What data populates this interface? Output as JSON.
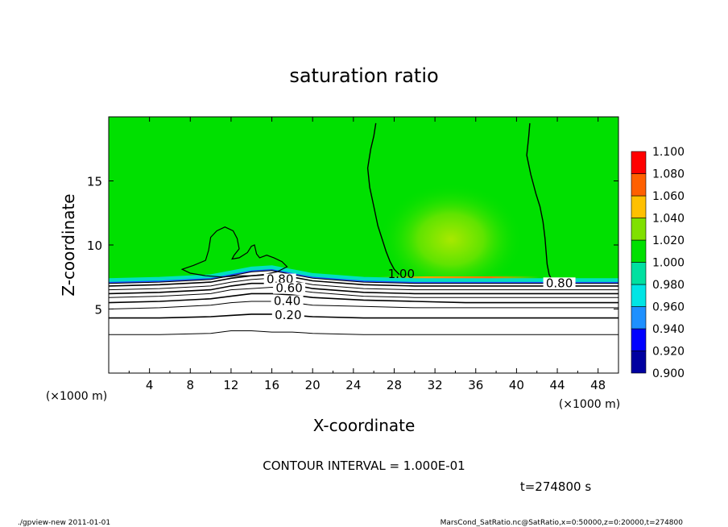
{
  "chart_data": {
    "type": "heatmap",
    "title": "saturation ratio",
    "xlabel": "X-coordinate",
    "ylabel": "Z-coordinate",
    "x_unit": "(×1000 m)",
    "y_unit": "(×1000 m)",
    "xlim": [
      0,
      50
    ],
    "ylim": [
      0,
      20
    ],
    "x_ticks": [
      "4",
      "8",
      "12",
      "16",
      "20",
      "24",
      "28",
      "32",
      "36",
      "40",
      "44",
      "48"
    ],
    "y_ticks": [
      "5",
      "10",
      "15"
    ],
    "contour_interval_text": "CONTOUR INTERVAL = 1.000E-01",
    "time_text": "t=274800 s",
    "colorbar": {
      "levels": [
        "0.900",
        "0.920",
        "0.940",
        "0.960",
        "0.980",
        "1.000",
        "1.020",
        "1.040",
        "1.060",
        "1.080",
        "1.100"
      ],
      "colors": [
        "#6a0dad",
        "#0000a0",
        "#0000ff",
        "#1e90ff",
        "#00e5e5",
        "#00e0a0",
        "#00e000",
        "#80e000",
        "#ffc000",
        "#ff6000",
        "#ff0000",
        "#ff8080"
      ]
    },
    "contour_labels": [
      {
        "text": "1.00",
        "x": 28.7,
        "z": 7.6
      },
      {
        "text": "0.80",
        "x": 44.2,
        "z": 6.9
      },
      {
        "text": "0.80",
        "x": 16.8,
        "z": 7.2
      },
      {
        "text": "0.60",
        "x": 17.7,
        "z": 6.5
      },
      {
        "text": "0.40",
        "x": 17.5,
        "z": 5.5
      },
      {
        "text": "0.20",
        "x": 17.6,
        "z": 4.4
      }
    ],
    "contour_lines_x": [
      0,
      5,
      10,
      12,
      14,
      16,
      18,
      20,
      25,
      30,
      35,
      40,
      45,
      50
    ],
    "contour_lines": [
      {
        "level": "0.10",
        "z": [
          3.0,
          3.0,
          3.1,
          3.3,
          3.3,
          3.2,
          3.2,
          3.1,
          3.0,
          3.0,
          3.0,
          3.0,
          3.0,
          3.0
        ]
      },
      {
        "level": "0.20",
        "z": [
          4.3,
          4.3,
          4.4,
          4.5,
          4.6,
          4.6,
          4.5,
          4.4,
          4.3,
          4.3,
          4.3,
          4.3,
          4.3,
          4.3
        ]
      },
      {
        "level": "0.30",
        "z": [
          5.0,
          5.1,
          5.3,
          5.5,
          5.6,
          5.6,
          5.5,
          5.3,
          5.2,
          5.1,
          5.1,
          5.1,
          5.1,
          5.1
        ]
      },
      {
        "level": "0.40",
        "z": [
          5.5,
          5.6,
          5.8,
          6.0,
          6.2,
          6.2,
          6.1,
          5.9,
          5.7,
          5.6,
          5.5,
          5.5,
          5.5,
          5.5
        ]
      },
      {
        "level": "0.50",
        "z": [
          5.9,
          6.0,
          6.2,
          6.5,
          6.6,
          6.7,
          6.5,
          6.3,
          6.0,
          5.9,
          5.9,
          5.9,
          5.9,
          5.9
        ]
      },
      {
        "level": "0.60",
        "z": [
          6.2,
          6.3,
          6.5,
          6.8,
          7.0,
          7.0,
          6.9,
          6.6,
          6.3,
          6.2,
          6.2,
          6.2,
          6.2,
          6.2
        ]
      },
      {
        "level": "0.70",
        "z": [
          6.5,
          6.6,
          6.8,
          7.1,
          7.3,
          7.4,
          7.2,
          6.9,
          6.6,
          6.5,
          6.5,
          6.5,
          6.5,
          6.5
        ]
      },
      {
        "level": "0.80",
        "z": [
          6.8,
          6.9,
          7.1,
          7.4,
          7.6,
          7.7,
          7.5,
          7.2,
          6.9,
          6.8,
          6.8,
          6.8,
          6.8,
          6.8
        ]
      },
      {
        "level": "0.90",
        "z": [
          7.0,
          7.1,
          7.3,
          7.6,
          7.9,
          8.0,
          7.7,
          7.4,
          7.1,
          7.0,
          7.0,
          7.0,
          7.0,
          7.0
        ]
      }
    ],
    "one_contours": [
      {
        "x": [
          26.2,
          26.0,
          25.7,
          25.4,
          25.6,
          26.0,
          26.4,
          26.8,
          27.2,
          27.6,
          28.0,
          28.5
        ],
        "z": [
          19.5,
          18.5,
          17.5,
          16.0,
          14.5,
          13.0,
          11.5,
          10.5,
          9.5,
          8.7,
          8.1,
          7.7
        ]
      },
      {
        "x": [
          41.3,
          41.2,
          41.0,
          41.4,
          41.9,
          42.3,
          42.6,
          42.8,
          42.9,
          43.0,
          43.2,
          43.5
        ],
        "z": [
          19.5,
          18.5,
          17.0,
          15.5,
          14.0,
          13.0,
          11.8,
          10.5,
          9.5,
          8.5,
          7.7,
          7.2
        ]
      }
    ],
    "cloud_outline": {
      "x": [
        7.2,
        8.3,
        9.5,
        9.8,
        10.0,
        10.6,
        11.4,
        12.2,
        12.6,
        12.8,
        12.3,
        12.1,
        12.8,
        13.6,
        14.0,
        14.3,
        14.5,
        14.8,
        15.5,
        16.2,
        17.0,
        17.5,
        16.5,
        15.2,
        14.0,
        12.8,
        11.2,
        9.5,
        8.0,
        7.2
      ],
      "z": [
        8.1,
        8.4,
        8.8,
        9.6,
        10.6,
        11.1,
        11.4,
        11.1,
        10.5,
        9.7,
        9.2,
        8.9,
        9.0,
        9.4,
        9.9,
        10.0,
        9.3,
        9.0,
        9.2,
        9.0,
        8.7,
        8.3,
        7.9,
        7.7,
        7.6,
        7.6,
        7.5,
        7.6,
        7.8,
        8.1
      ]
    }
  },
  "footer": {
    "left": "./gpview-new   2011-01-01",
    "right": "MarsCond_SatRatio.nc@SatRatio,x=0:50000,z=0:20000,t=274800"
  }
}
